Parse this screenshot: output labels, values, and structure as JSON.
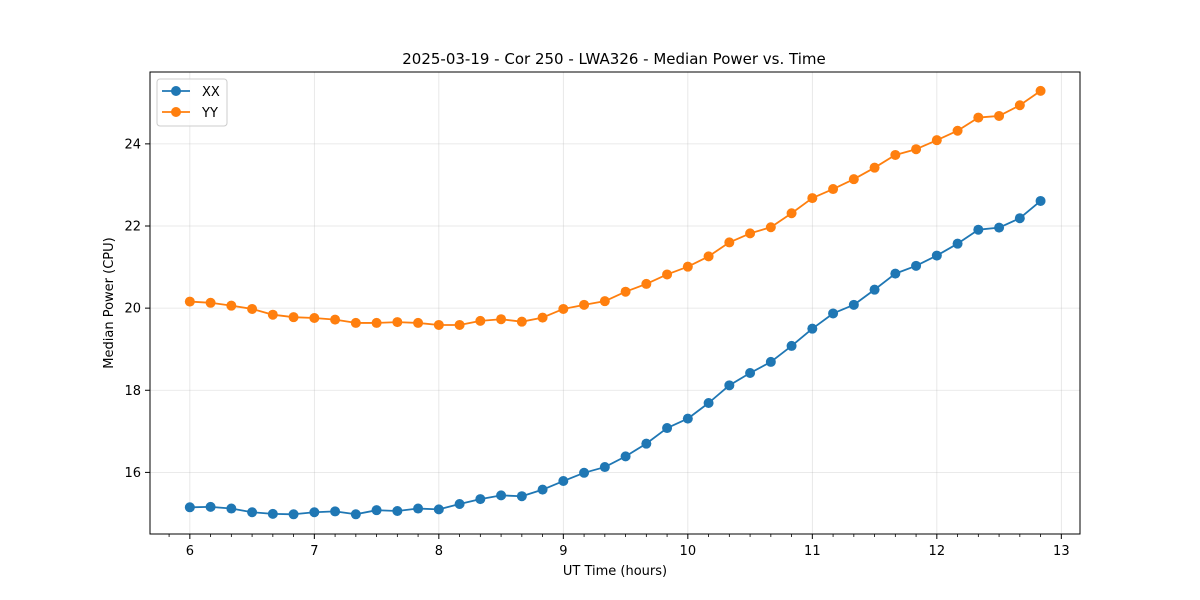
{
  "chart_data": {
    "type": "line",
    "title": "2025-03-19 - Cor 250 - LWA326 - Median Power vs. Time",
    "xlabel": "UT Time (hours)",
    "ylabel": "Median Power (CPU)",
    "xlim": [
      5.68,
      13.15
    ],
    "ylim": [
      14.5,
      25.75
    ],
    "xticks": [
      6,
      7,
      8,
      9,
      10,
      11,
      12,
      13
    ],
    "yticks": [
      16,
      18,
      20,
      22,
      24
    ],
    "grid": true,
    "legend_position": "top-left",
    "series": [
      {
        "name": "XX",
        "color": "#1f77b4",
        "x": [
          6.0,
          6.1667,
          6.3333,
          6.5,
          6.6667,
          6.8333,
          7.0,
          7.1667,
          7.3333,
          7.5,
          7.6667,
          7.8333,
          8.0,
          8.1667,
          8.3333,
          8.5,
          8.6667,
          8.8333,
          9.0,
          9.1667,
          9.3333,
          9.5,
          9.6667,
          9.8333,
          10.0,
          10.1667,
          10.3333,
          10.5,
          10.6667,
          10.8333,
          11.0,
          11.1667,
          11.3333,
          11.5,
          11.6667,
          11.8333,
          12.0,
          12.1667,
          12.3333,
          12.5,
          12.6667,
          12.8333
        ],
        "y": [
          15.15,
          15.16,
          15.12,
          15.03,
          14.99,
          14.98,
          15.03,
          15.05,
          14.98,
          15.08,
          15.06,
          15.12,
          15.1,
          15.23,
          15.35,
          15.44,
          15.42,
          15.58,
          15.79,
          15.99,
          16.13,
          16.39,
          16.7,
          17.08,
          17.31,
          17.69,
          18.12,
          18.42,
          18.69,
          19.08,
          19.5,
          19.87,
          20.08,
          20.45,
          20.84,
          21.03,
          21.28,
          21.57,
          21.91,
          21.96,
          22.19,
          22.61
        ]
      },
      {
        "name": "YY",
        "color": "#ff7f0e",
        "x": [
          6.0,
          6.1667,
          6.3333,
          6.5,
          6.6667,
          6.8333,
          7.0,
          7.1667,
          7.3333,
          7.5,
          7.6667,
          7.8333,
          8.0,
          8.1667,
          8.3333,
          8.5,
          8.6667,
          8.8333,
          9.0,
          9.1667,
          9.3333,
          9.5,
          9.6667,
          9.8333,
          10.0,
          10.1667,
          10.3333,
          10.5,
          10.6667,
          10.8333,
          11.0,
          11.1667,
          11.3333,
          11.5,
          11.6667,
          11.8333,
          12.0,
          12.1667,
          12.3333,
          12.5,
          12.6667,
          12.8333
        ],
        "y": [
          20.16,
          20.13,
          20.06,
          19.98,
          19.84,
          19.78,
          19.76,
          19.72,
          19.64,
          19.64,
          19.66,
          19.64,
          19.59,
          19.59,
          19.69,
          19.73,
          19.67,
          19.77,
          19.98,
          20.08,
          20.17,
          20.4,
          20.59,
          20.82,
          21.01,
          21.26,
          21.6,
          21.82,
          21.97,
          22.31,
          22.68,
          22.9,
          23.14,
          23.42,
          23.73,
          23.87,
          24.09,
          24.32,
          24.64,
          24.68,
          24.94,
          25.29
        ]
      }
    ]
  }
}
